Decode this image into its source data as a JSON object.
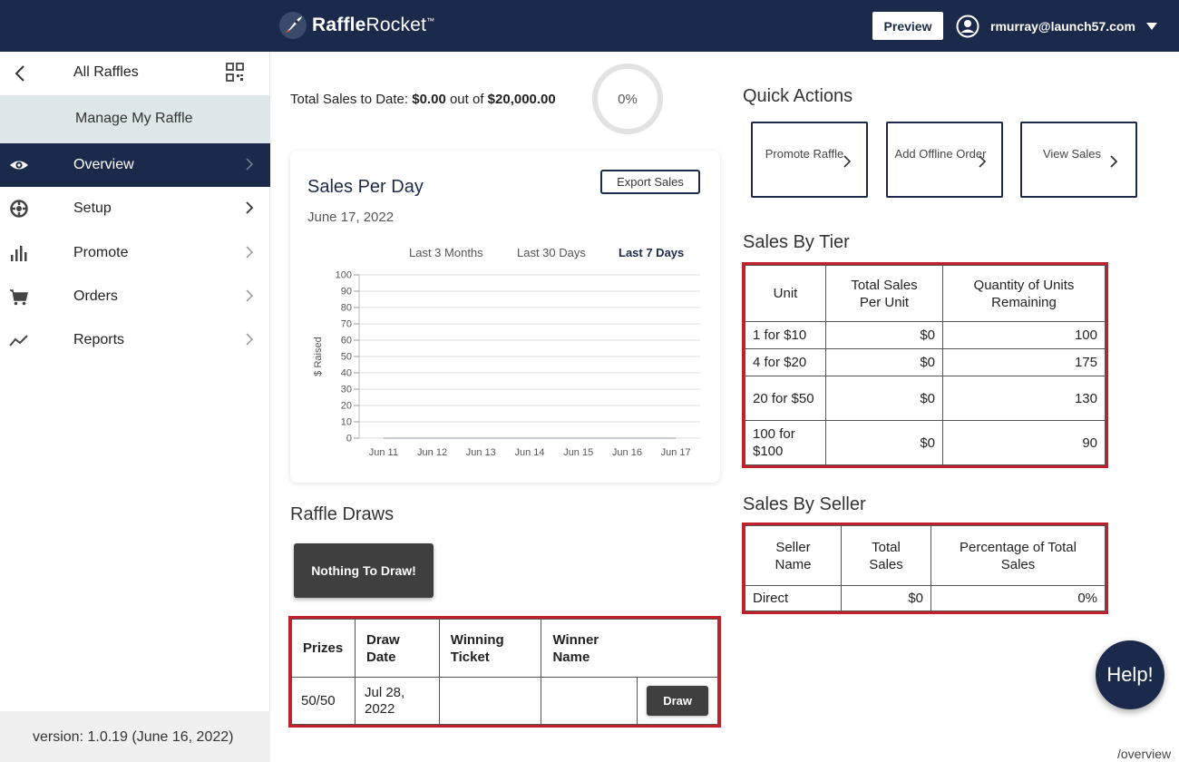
{
  "header": {
    "brand_bold": "Raffle",
    "brand_light": "Rocket",
    "brand_tm": "™",
    "preview_label": "Preview",
    "user_email": "rmurray@launch57.com"
  },
  "sidebar": {
    "all_raffles": "All Raffles",
    "manage": "Manage My Raffle",
    "items": [
      {
        "label": "Overview",
        "icon": "eye-icon",
        "active": true
      },
      {
        "label": "Setup",
        "icon": "gear-icon"
      },
      {
        "label": "Promote",
        "icon": "bar-chart-icon"
      },
      {
        "label": "Orders",
        "icon": "cart-icon"
      },
      {
        "label": "Reports",
        "icon": "trend-line-icon"
      }
    ],
    "version": "version: 1.0.19 (June 16, 2022)"
  },
  "summary": {
    "prefix": "Total Sales to Date: ",
    "sales": "$0.00",
    "mid": " out of ",
    "goal": "$20,000.00",
    "progress_label": "0%",
    "progress": 0
  },
  "chart": {
    "title": "Sales Per Day",
    "date": "June 17, 2022",
    "export_label": "Export Sales",
    "ranges": [
      "Last 3 Months",
      "Last 30 Days",
      "Last 7 Days"
    ],
    "active_range": 2
  },
  "chart_data": {
    "type": "line",
    "title": "Sales Per Day",
    "x": [
      "Jun 11",
      "Jun 12",
      "Jun 13",
      "Jun 14",
      "Jun 15",
      "Jun 16",
      "Jun 17"
    ],
    "yticks": [
      "100",
      "90",
      "80",
      "70",
      "60",
      "50",
      "40",
      "30",
      "20",
      "10",
      "0"
    ],
    "ylabel": "$ Raised",
    "ylim": [
      0,
      100
    ],
    "series": [
      {
        "values": [
          0,
          0,
          0,
          0,
          0,
          0,
          0
        ]
      }
    ],
    "grid": true
  },
  "draws": {
    "title": "Raffle Draws",
    "nothing_label": "Nothing To Draw!",
    "headers": [
      "Prizes",
      "Draw Date",
      "Winning Ticket",
      "Winner Name"
    ],
    "rows": [
      {
        "prize": "50/50",
        "date": "Jul 28, 2022",
        "ticket": "",
        "winner": "",
        "action": "Draw"
      }
    ]
  },
  "quick_actions": {
    "title": "Quick Actions",
    "buttons": [
      "Promote Raffle",
      "Add Offline Order",
      "View Sales"
    ]
  },
  "tier": {
    "title": "Sales By Tier",
    "headers": [
      "Unit",
      "Total Sales Per Unit",
      "Quantity of Units Remaining"
    ],
    "rows": [
      {
        "unit": "1 for $10",
        "sales": "$0",
        "remaining": "100"
      },
      {
        "unit": "4 for $20",
        "sales": "$0",
        "remaining": "175"
      },
      {
        "unit": "20 for $50",
        "sales": "$0",
        "remaining": "130"
      },
      {
        "unit": "100 for $100",
        "sales": "$0",
        "remaining": "90"
      }
    ]
  },
  "seller": {
    "title": "Sales By Seller",
    "headers": [
      "Seller Name",
      "Total Sales",
      "Percentage of Total Sales"
    ],
    "rows": [
      {
        "name": "Direct",
        "sales": "$0",
        "pct": "0%"
      }
    ]
  },
  "help_label": "Help!",
  "route": "/overview",
  "colors": {
    "navy": "#1b2a4a",
    "highlight": "#c0202a",
    "manage_bg": "#dde6e9"
  }
}
